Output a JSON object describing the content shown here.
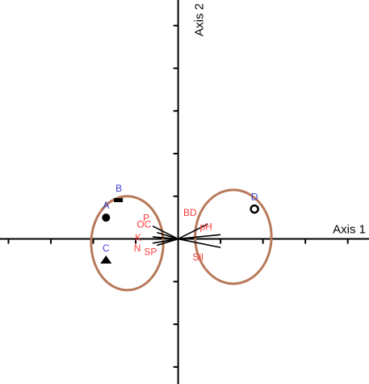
{
  "chart_data": {
    "type": "scatter",
    "title": "",
    "xlabel": "Axis 1",
    "ylabel": "Axis 2",
    "xlim": [
      -4.2,
      4.5
    ],
    "ylim": [
      -3.4,
      5.6
    ],
    "grid": false,
    "colors": {
      "axis": "#000000",
      "site_label": "#3b3bd1",
      "variable_label": "#ff3c3c",
      "ellipse": "#b8795a",
      "vector": "#000000"
    },
    "sites": [
      {
        "label": "A",
        "marker": "filled-circle",
        "x": -1.7,
        "y": 0.5
      },
      {
        "label": "B",
        "marker": "filled-square",
        "x": -1.4,
        "y": 0.9
      },
      {
        "label": "C",
        "marker": "filled-triangle",
        "x": -1.7,
        "y": -0.5
      },
      {
        "label": "D",
        "marker": "open-circle",
        "x": 1.8,
        "y": 0.7
      }
    ],
    "variables": [
      {
        "label": "P",
        "x": -0.6,
        "y": 0.3
      },
      {
        "label": "OC",
        "x": -0.5,
        "y": 0.15
      },
      {
        "label": "K",
        "x": -0.6,
        "y": 0.05
      },
      {
        "label": "N",
        "x": -0.6,
        "y": -0.1
      },
      {
        "label": "SP",
        "x": -0.5,
        "y": -0.15
      },
      {
        "label": "BD",
        "x": 0.7,
        "y": 0.35
      },
      {
        "label": "pH",
        "x": 1.0,
        "y": 0.1
      },
      {
        "label": "Sil",
        "x": 1.0,
        "y": -0.2
      }
    ],
    "groups": [
      {
        "members": [
          "A",
          "B",
          "C",
          "P",
          "OC",
          "K",
          "N",
          "SP"
        ],
        "cx": -1.2,
        "cy": -0.1,
        "rx": 0.85,
        "ry": 1.1
      },
      {
        "members": [
          "D",
          "BD",
          "pH",
          "Sil"
        ],
        "cx": 1.3,
        "cy": 0.05,
        "rx": 0.9,
        "ry": 1.1
      }
    ]
  }
}
